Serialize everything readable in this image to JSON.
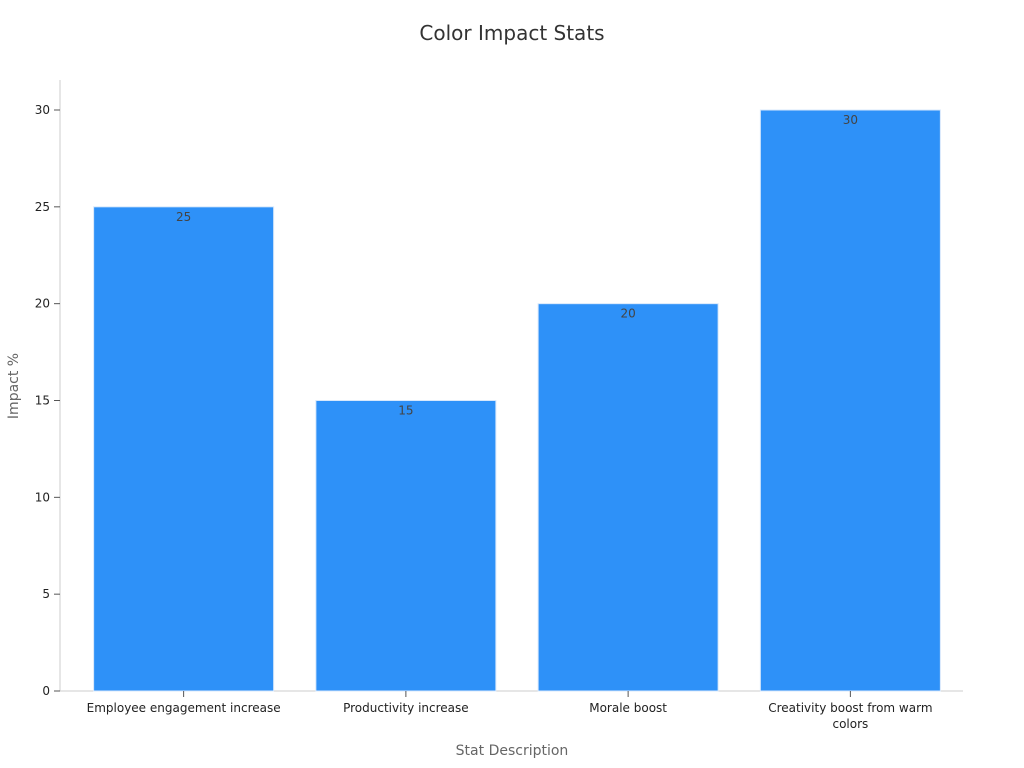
{
  "chart_data": {
    "type": "bar",
    "title": "Color Impact Stats",
    "xlabel": "Stat Description",
    "ylabel": "Impact %",
    "categories": [
      [
        "Employee engagement increase"
      ],
      [
        "Productivity increase"
      ],
      [
        "Morale boost"
      ],
      [
        "Creativity boost from warm",
        "colors"
      ]
    ],
    "values": [
      25,
      15,
      20,
      30
    ],
    "ylim": [
      0,
      31.5
    ],
    "yticks": [
      0,
      5,
      10,
      15,
      20,
      25,
      30
    ],
    "bar_color": "#2e91f8",
    "grid": false,
    "legend": "none"
  }
}
